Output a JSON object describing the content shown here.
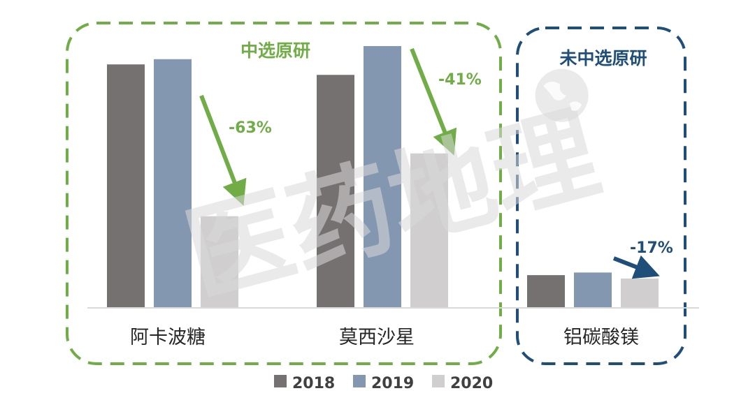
{
  "chart_data": {
    "type": "bar",
    "title": "",
    "xlabel": "",
    "ylabel": "",
    "ylim": [
      0,
      100
    ],
    "grid": false,
    "legend_position": "bottom",
    "categories": [
      "阿卡波糖",
      "莫西沙星",
      "铝碳酸镁"
    ],
    "series": [
      {
        "name": "2018",
        "color": "#767171",
        "values": [
          93,
          89,
          12.5
        ]
      },
      {
        "name": "2019",
        "color": "#8497b0",
        "values": [
          95,
          100,
          13.5
        ]
      },
      {
        "name": "2020",
        "color": "#d0cece",
        "values": [
          35,
          59,
          11.2
        ]
      }
    ],
    "groups": [
      {
        "title": "中选原研",
        "color": "#70ad47",
        "members": [
          "阿卡波糖",
          "莫西沙星"
        ]
      },
      {
        "title": "未中选原研",
        "color": "#1f4e79",
        "members": [
          "铝碳酸镁"
        ]
      }
    ],
    "annotations": [
      {
        "category": "阿卡波糖",
        "text": "-63%",
        "color": "#70ad47",
        "from_series": "2019",
        "to_series": "2020"
      },
      {
        "category": "莫西沙星",
        "text": "-41%",
        "color": "#70ad47",
        "from_series": "2019",
        "to_series": "2020"
      },
      {
        "category": "铝碳酸镁",
        "text": "-17%",
        "color": "#1f4e79",
        "from_series": "2019",
        "to_series": "2020"
      }
    ]
  },
  "watermark": {
    "text": "医药地理",
    "icon": "globe-icon",
    "color": "#d9d9d9"
  }
}
